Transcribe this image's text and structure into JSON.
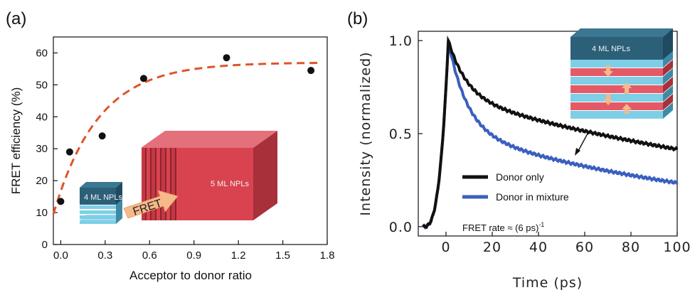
{
  "chart_data": [
    {
      "panel": "(a)",
      "type": "scatter",
      "xlabel": "Acceptor to donor ratio",
      "ylabel": "FRET efficiency (%)",
      "xlim": [
        -0.05,
        1.8
      ],
      "ylim": [
        0,
        65
      ],
      "xticks": [
        "0.0",
        "0.3",
        "0.6",
        "0.9",
        "1.2",
        "1.5",
        "1.8"
      ],
      "yticks": [
        "0",
        "10",
        "20",
        "30",
        "40",
        "50",
        "60"
      ],
      "points": [
        {
          "x": 0.0,
          "y": 13.5
        },
        {
          "x": 0.06,
          "y": 29
        },
        {
          "x": 0.28,
          "y": 34
        },
        {
          "x": 0.56,
          "y": 52
        },
        {
          "x": 1.12,
          "y": 58.5
        },
        {
          "x": 1.69,
          "y": 54.5
        }
      ],
      "fit_curve": {
        "style": "dashed",
        "color": "#e0542a",
        "amplitude": 57,
        "rate": 3.3,
        "offset": 9.5,
        "x_start": -0.05,
        "x_end": 1.75
      },
      "insets": {
        "donor_label": "4 ML NPLs",
        "acceptor_label": "5 ML NPLs",
        "arrow_label": "FRET"
      }
    },
    {
      "panel": "(b)",
      "type": "line",
      "xlabel": "Time (ps)",
      "ylabel": "Intensity (normalized)",
      "xlim": [
        -12,
        100
      ],
      "ylim": [
        -0.05,
        1.05
      ],
      "xticks": [
        "0",
        "20",
        "40",
        "60",
        "80",
        "100"
      ],
      "yticks": [
        "0.0",
        "0.5",
        "1.0"
      ],
      "series": [
        {
          "name": "Donor only",
          "color": "#111111",
          "peak_time": 1,
          "rise_time": 4,
          "decay": [
            {
              "a": 0.3,
              "tau": 8
            },
            {
              "a": 0.7,
              "tau": 190
            }
          ]
        },
        {
          "name": "Donor in mixture",
          "color": "#3a5fbf",
          "peak_time": 1,
          "rise_time": 4,
          "decay": [
            {
              "a": 0.48,
              "tau": 8
            },
            {
              "a": 0.52,
              "tau": 125
            }
          ]
        }
      ],
      "annotation": "FRET rate ≈ (6 ps)",
      "annotation_superscript": "-1",
      "inset_label": "4 ML NPLs"
    }
  ],
  "colors": {
    "fit": "#e0542a",
    "acceptor_red": "#d9434f",
    "donor_blue": "#7ecfe6",
    "donor_dark": "#2c5f78",
    "arrow_orange": "#f6b98a"
  }
}
